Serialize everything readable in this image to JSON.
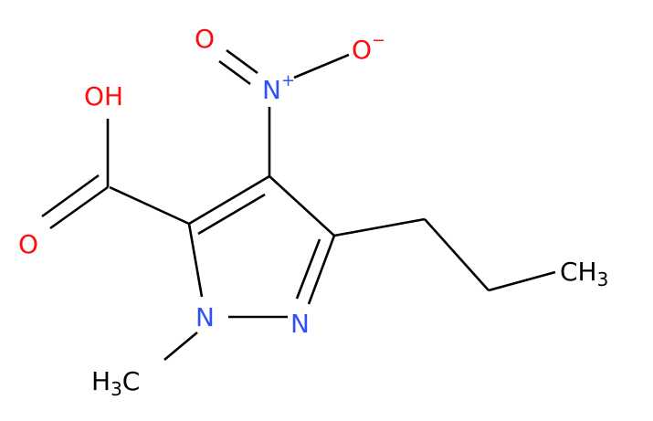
{
  "atoms": [
    {
      "main": "O"
    },
    {
      "main": "N",
      "sup": "+"
    },
    {
      "main": "O",
      "sup": "−"
    },
    {
      "main": "OH"
    },
    {
      "main": "O"
    },
    {
      "main": "N"
    },
    {
      "main": "N"
    },
    {
      "main": "H",
      "sub": "3",
      "after": "C"
    },
    {
      "main": "CH",
      "sub": "3"
    }
  ]
}
